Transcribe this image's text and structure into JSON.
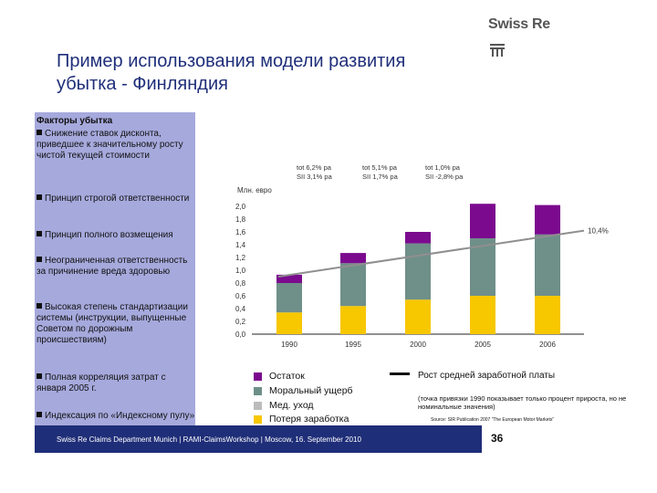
{
  "brand": {
    "logo_text": "Swiss Re"
  },
  "title": "Пример использования модели развития убытка - Финляндия",
  "factors": {
    "heading": "Факторы убытка",
    "items": [
      "Снижение ставок дисконта, приведшее к значительному росту чистой текущей стоимости",
      "Принцип строгой ответственности",
      "Принцип полного возмещения",
      "Неограниченная ответственность за причинение вреда здоровью",
      "Высокая степень стандартизации системы (инструкции, выпущенные Советом по дорожным происшествиям)",
      "Полная корреляция затрат с января 2005 г.",
      "Индексация по «Индексному пулу»"
    ]
  },
  "growth_rates": [
    {
      "line1": "tot   6,2% pa",
      "line2": "SII   3,1% pa"
    },
    {
      "line1": "tot   5,1% pa",
      "line2": "SII   1,7% pa"
    },
    {
      "line1": "tot   1,0% pa",
      "line2": "SII  -2,8% pa"
    }
  ],
  "unit_label": "Млн. евро",
  "chart_data": {
    "type": "bar",
    "stacked": true,
    "categories": [
      "1990",
      "1995",
      "2000",
      "2005",
      "2006"
    ],
    "yticks": [
      "2,0",
      "1,8",
      "1,6",
      "1,4",
      "1,2",
      "1,0",
      "0,8",
      "0,6",
      "0,4",
      "0,2",
      "0,0"
    ],
    "ylim": [
      0,
      2.0
    ],
    "series": [
      {
        "name": "Потеря заработка",
        "color": "#f7c700",
        "values": [
          0.34,
          0.44,
          0.54,
          0.6,
          0.6
        ]
      },
      {
        "name": "Мед. уход",
        "color": "#bcbcbc",
        "values": [
          0.0,
          0.0,
          0.0,
          0.0,
          0.0
        ]
      },
      {
        "name": "Моральный ущерб",
        "color": "#6f8f89",
        "values": [
          0.46,
          0.67,
          0.88,
          0.9,
          0.96
        ]
      },
      {
        "name": "Остаток",
        "color": "#7b0a8e",
        "values": [
          0.13,
          0.16,
          0.18,
          0.54,
          0.46
        ]
      }
    ],
    "line": {
      "name": "Рост средней заработной платы",
      "color": "#8f8f8f",
      "x": [
        "1990",
        "2006"
      ],
      "values": [
        0.9,
        1.62
      ],
      "end_label": "10,4%"
    },
    "grid": false
  },
  "legend": {
    "items": [
      {
        "label": "Остаток",
        "color": "#7b0a8e"
      },
      {
        "label": "Моральный ущерб",
        "color": "#6f8f89"
      },
      {
        "label": "Мед. уход",
        "color": "#bcbcbc"
      },
      {
        "label": "Потеря заработка",
        "color": "#f7c700"
      }
    ],
    "line_label": "Рост средней заработной платы",
    "note": "(точка привязки 1990 показывает только процент прироста, но не номинальные значения)",
    "source": "Source: SIR Publication 2007 “The European Motor Markets”"
  },
  "footer": {
    "text": "Swiss Re Claims Department Munich | RAMI-ClaimsWorkshop | Moscow, 16. September 2010",
    "page_number": "36"
  }
}
